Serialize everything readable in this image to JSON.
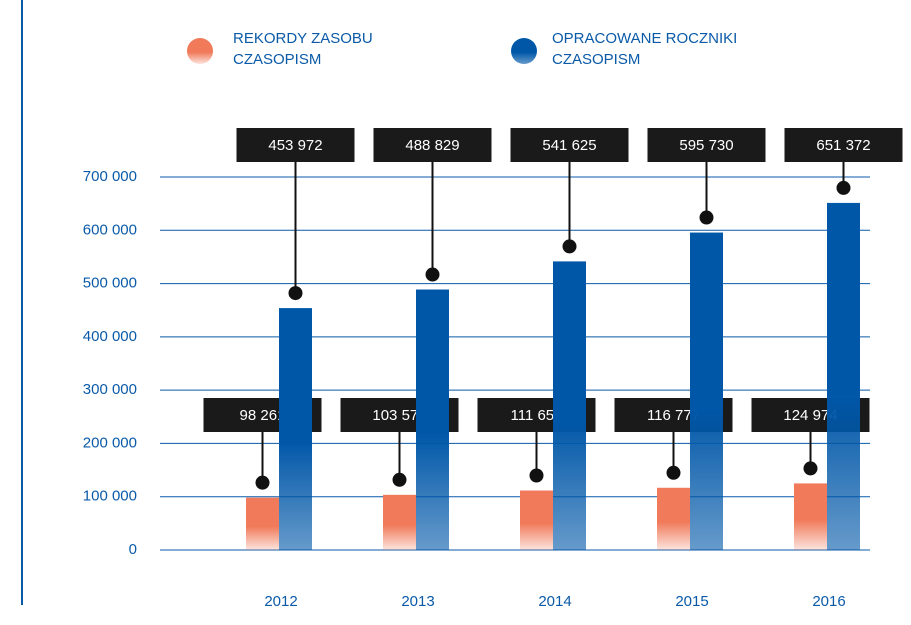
{
  "chart_data": {
    "type": "bar",
    "categories": [
      "2012",
      "2013",
      "2014",
      "2015",
      "2016"
    ],
    "series": [
      {
        "name": "REKORDY ZASOBU CZASOPISM",
        "color": "#f07a5a",
        "values": [
          98261,
          103570,
          111651,
          116777,
          124974
        ],
        "value_labels": [
          "98 261",
          "103 570",
          "111 651",
          "116 777",
          "124 974"
        ]
      },
      {
        "name": "OPRACOWANE ROCZNIKI CZASOPISM",
        "color": "#0057a8",
        "values": [
          453972,
          488829,
          541625,
          595730,
          651372
        ],
        "value_labels": [
          "453 972",
          "488 829",
          "541 625",
          "595 730",
          "651 372"
        ]
      }
    ],
    "ylim": [
      0,
      700000
    ],
    "yticks": [
      0,
      {
        "value": 100000,
        "label": "100 000"
      },
      {
        "value": 200000,
        "label": "200 000"
      },
      {
        "value": 300000,
        "label": "300 000"
      },
      {
        "value": 400000,
        "label": "400 000"
      },
      {
        "value": 500000,
        "label": "500 000"
      },
      {
        "value": 600000,
        "label": "600 000"
      },
      {
        "value": 700000,
        "label": "700 000"
      }
    ],
    "grid": true
  }
}
